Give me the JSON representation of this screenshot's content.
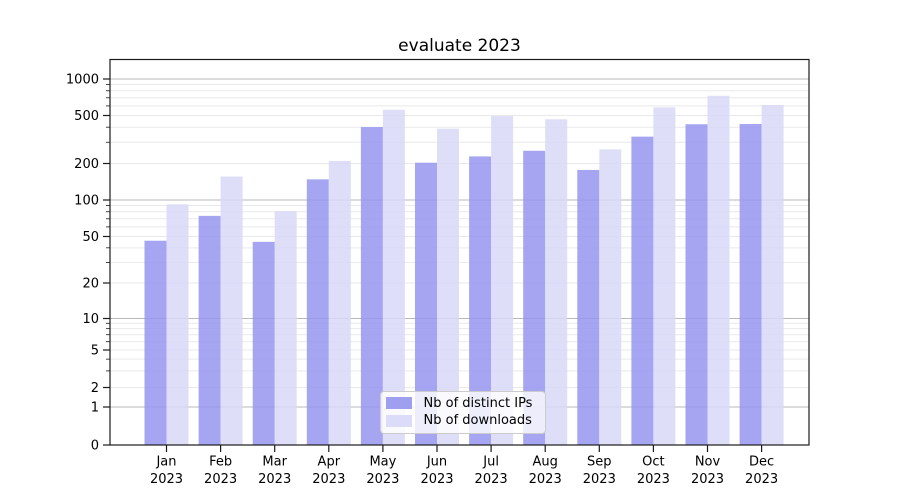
{
  "chart_data": {
    "type": "bar",
    "title": "evaluate 2023",
    "categories": [
      "Jan",
      "Feb",
      "Mar",
      "Apr",
      "May",
      "Jun",
      "Jul",
      "Aug",
      "Sep",
      "Oct",
      "Nov",
      "Dec"
    ],
    "category_year": "2023",
    "series": [
      {
        "name": "Nb of distinct IPs",
        "color": "#9595ee",
        "values": [
          46,
          74,
          45,
          148,
          401,
          203,
          229,
          255,
          177,
          334,
          423,
          425
        ]
      },
      {
        "name": "Nb of downloads",
        "color": "#d8d8f8",
        "values": [
          92,
          156,
          81,
          210,
          558,
          389,
          495,
          465,
          262,
          584,
          728,
          610
        ]
      }
    ],
    "xlabel": "",
    "ylabel": "",
    "yscale": "symlog",
    "ytick_labels": [
      "1000",
      "500",
      "200",
      "100",
      "50",
      "20",
      "10",
      "5",
      "2",
      "1",
      "0"
    ],
    "ylim": [
      0,
      1400
    ],
    "grid": true,
    "grid_major_color": "#b8b8b8",
    "grid_minor_color": "#e9e9e9",
    "legend_position": "lower-center-inside"
  }
}
